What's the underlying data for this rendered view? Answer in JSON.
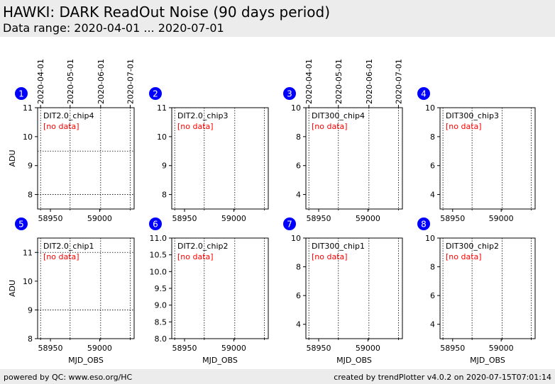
{
  "header": {
    "title": "HAWKI: DARK ReadOut Noise (90 days period)",
    "subtitle": "Data range: 2020-04-01 ... 2020-07-01"
  },
  "footer": {
    "left": "powered by QC: www.eso.org/HC",
    "right": "created by trendPlotter v4.0.2 on 2020-07-15T07:01:14"
  },
  "colors": {
    "badge": "#0000ff",
    "no_data": "#ff0000",
    "banner": "#ececec"
  },
  "chart_data": [
    {
      "type": "scatter",
      "number": "1",
      "label": "DIT2.0_chip4",
      "note": "[no data]",
      "ylabel": "ADU",
      "xlabel": "",
      "xlim": [
        58937,
        59035
      ],
      "ylim": [
        7.5,
        11
      ],
      "yticks": [
        8,
        9,
        10,
        11
      ],
      "ytick_labels": [
        "8",
        "9",
        "10",
        "11"
      ],
      "xticks": [
        58950,
        59000
      ],
      "xtick_labels": [
        "58950",
        "59000"
      ],
      "date_ticks": [
        "2020-04-01",
        "2020-05-01",
        "2020-06-01",
        "2020-07-01"
      ],
      "hgrid": [
        8,
        9.5
      ],
      "series": []
    },
    {
      "type": "scatter",
      "number": "2",
      "label": "DIT2.0_chip3",
      "note": "[no data]",
      "ylabel": "",
      "xlabel": "",
      "xlim": [
        58937,
        59035
      ],
      "ylim": [
        7.5,
        11
      ],
      "yticks": [
        8,
        9,
        10,
        11
      ],
      "ytick_labels": [
        "8",
        "9",
        "10",
        "11"
      ],
      "xticks": [
        58950,
        59000
      ],
      "xtick_labels": [
        "58950",
        "59000"
      ],
      "date_ticks": [],
      "hgrid": [],
      "series": []
    },
    {
      "type": "scatter",
      "number": "3",
      "label": "DIT300_chip4",
      "note": "[no data]",
      "ylabel": "",
      "xlabel": "",
      "xlim": [
        58937,
        59035
      ],
      "ylim": [
        3,
        10
      ],
      "yticks": [
        4,
        6,
        8,
        10
      ],
      "ytick_labels": [
        "4",
        "6",
        "8",
        "10"
      ],
      "xticks": [
        58950,
        59000
      ],
      "xtick_labels": [
        "58950",
        "59000"
      ],
      "date_ticks": [
        "2020-04-01",
        "2020-05-01",
        "2020-06-01",
        "2020-07-01"
      ],
      "hgrid": [],
      "series": []
    },
    {
      "type": "scatter",
      "number": "4",
      "label": "DIT300_chip3",
      "note": "[no data]",
      "ylabel": "",
      "xlabel": "",
      "xlim": [
        58937,
        59035
      ],
      "ylim": [
        3,
        10
      ],
      "yticks": [
        4,
        6,
        8,
        10
      ],
      "ytick_labels": [
        "4",
        "6",
        "8",
        "10"
      ],
      "xticks": [
        58950,
        59000
      ],
      "xtick_labels": [
        "58950",
        "59000"
      ],
      "date_ticks": [],
      "hgrid": [],
      "series": []
    },
    {
      "type": "scatter",
      "number": "5",
      "label": "DIT2.0_chip1",
      "note": "[no data]",
      "ylabel": "ADU",
      "xlabel": "MJD_OBS",
      "xlim": [
        58937,
        59035
      ],
      "ylim": [
        8,
        11.5
      ],
      "yticks": [
        8,
        9,
        10,
        11
      ],
      "ytick_labels": [
        "8",
        "9",
        "10",
        "11"
      ],
      "xticks": [
        58950,
        59000
      ],
      "xtick_labels": [
        "58950",
        "59000"
      ],
      "date_ticks": [],
      "hgrid": [
        9,
        11
      ],
      "series": []
    },
    {
      "type": "scatter",
      "number": "6",
      "label": "DIT2.0_chip2",
      "note": "[no data]",
      "ylabel": "",
      "xlabel": "MJD_OBS",
      "xlim": [
        58937,
        59035
      ],
      "ylim": [
        8,
        11
      ],
      "yticks": [
        8,
        8.5,
        9,
        9.5,
        10,
        10.5,
        11
      ],
      "ytick_labels": [
        "8.0",
        "8.5",
        "9.0",
        "9.5",
        "10.0",
        "10.5",
        "11.0"
      ],
      "xticks": [
        58950,
        59000
      ],
      "xtick_labels": [
        "58950",
        "59000"
      ],
      "date_ticks": [],
      "hgrid": [],
      "series": []
    },
    {
      "type": "scatter",
      "number": "7",
      "label": "DIT300_chip1",
      "note": "[no data]",
      "ylabel": "",
      "xlabel": "MJD_OBS",
      "xlim": [
        58937,
        59035
      ],
      "ylim": [
        3,
        10
      ],
      "yticks": [
        4,
        6,
        8,
        10
      ],
      "ytick_labels": [
        "4",
        "6",
        "8",
        "10"
      ],
      "xticks": [
        58950,
        59000
      ],
      "xtick_labels": [
        "58950",
        "59000"
      ],
      "date_ticks": [],
      "hgrid": [],
      "series": []
    },
    {
      "type": "scatter",
      "number": "8",
      "label": "DIT300_chip2",
      "note": "[no data]",
      "ylabel": "",
      "xlabel": "MJD_OBS",
      "xlim": [
        58937,
        59035
      ],
      "ylim": [
        3,
        10
      ],
      "yticks": [
        4,
        6,
        8,
        10
      ],
      "ytick_labels": [
        "4",
        "6",
        "8",
        "10"
      ],
      "xticks": [
        58950,
        59000
      ],
      "xtick_labels": [
        "58950",
        "59000"
      ],
      "date_ticks": [],
      "hgrid": [],
      "series": []
    }
  ]
}
